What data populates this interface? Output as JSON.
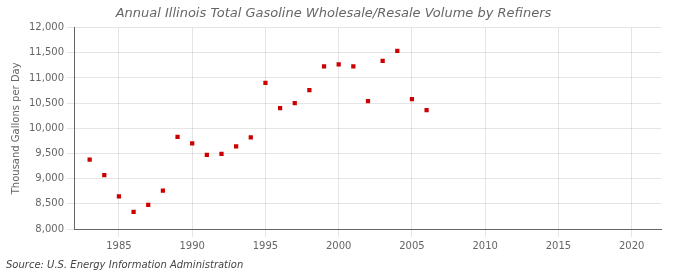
{
  "chart_data": {
    "type": "scatter",
    "title": "Annual Illinois Total Gasoline Wholesale/Resale Volume by Refiners",
    "ylabel": "Thousand Gallons per Day",
    "annotation": "Source: U.S. Energy Information Administration",
    "x": [
      1983,
      1984,
      1985,
      1986,
      1987,
      1988,
      1989,
      1990,
      1991,
      1992,
      1993,
      1994,
      1995,
      1996,
      1997,
      1998,
      1999,
      2000,
      2001,
      2002,
      2003,
      2004,
      2005,
      2006
    ],
    "values": [
      9380,
      9070,
      8650,
      8340,
      8480,
      8760,
      9830,
      9700,
      9470,
      9490,
      9640,
      9820,
      10900,
      10400,
      10500,
      10760,
      11230,
      11270,
      11230,
      10540,
      11340,
      11540,
      10580,
      10360
    ],
    "color": "#cc0000",
    "marker": "square",
    "grid": true,
    "xlim": [
      1982,
      2022
    ],
    "xticks": [
      1985,
      1990,
      1995,
      2000,
      2005,
      2010,
      2015,
      2020
    ],
    "ylim": [
      8000,
      12000
    ],
    "yticks": [
      {
        "value": 8000,
        "label": "8,000"
      },
      {
        "value": 8500,
        "label": "8,500"
      },
      {
        "value": 9000,
        "label": "9,000"
      },
      {
        "value": 9500,
        "label": "9,500"
      },
      {
        "value": 10000,
        "label": "10,000"
      },
      {
        "value": 10500,
        "label": "10,500"
      },
      {
        "value": 11000,
        "label": "11,000"
      },
      {
        "value": 11500,
        "label": "11,500"
      },
      {
        "value": 12000,
        "label": "12,000"
      }
    ]
  }
}
